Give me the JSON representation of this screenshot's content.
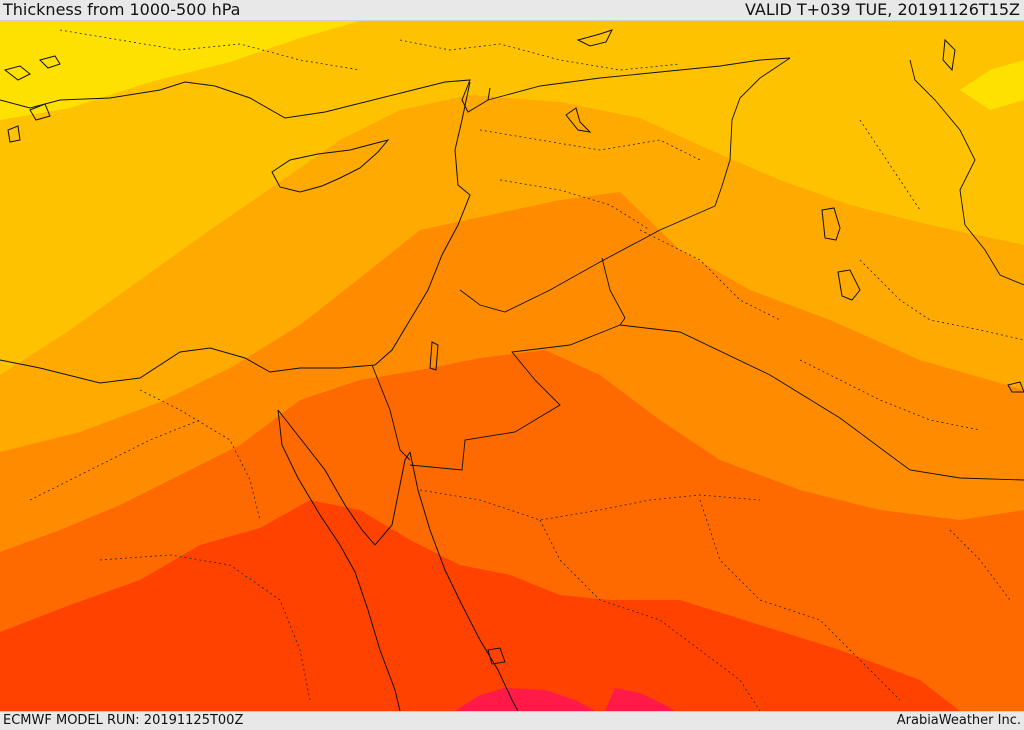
{
  "header": {
    "title": "Thickness from 1000-500 hPa",
    "valid": "VALID T+039 TUE, 20191126T15Z"
  },
  "footer": {
    "model_run": "ECMWF MODEL RUN: 20191125T00Z",
    "credit": "ArabiaWeather Inc."
  },
  "colors": {
    "band_1": "#FFE100",
    "band_2": "#FFC200",
    "band_3": "#FFAA00",
    "band_4": "#FF8C00",
    "band_5": "#FF6A00",
    "band_6": "#FF4200",
    "band_7": "#FF1A48"
  }
}
